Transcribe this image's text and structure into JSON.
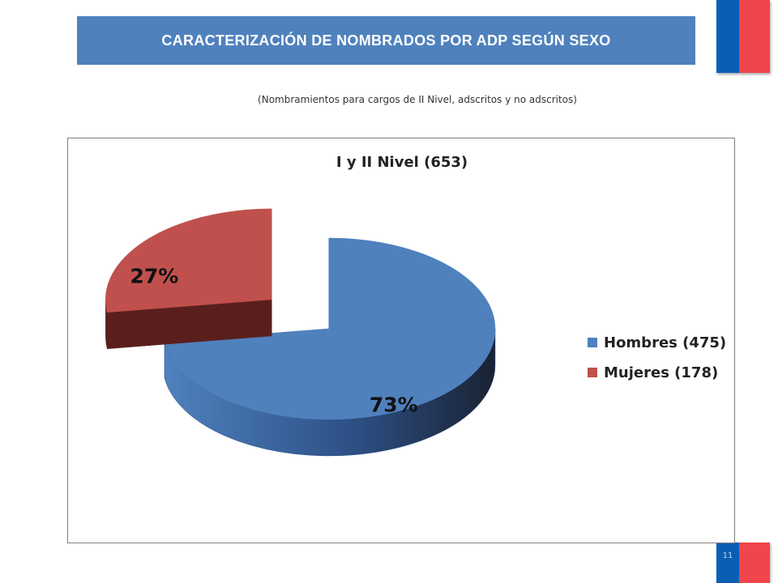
{
  "header": {
    "title": "CARACTERIZACIÓN  DE NOMBRADOS POR ADP SEGÚN SEXO",
    "subtitle": "(Nombramientos para cargos de II Nivel, adscritos y no adscritos)"
  },
  "slide_number": "11",
  "flag_colors": {
    "blue": "#0a5fb5",
    "red": "#f0454a"
  },
  "chart_data": {
    "type": "pie",
    "title": "I y II Nivel (653)",
    "labels": [
      "Hombres (475)",
      "Mujeres (178)"
    ],
    "values": [
      475,
      178
    ],
    "percent_labels": [
      "73%",
      "27%"
    ],
    "colors": [
      "#4f81bd",
      "#c0504d"
    ],
    "side_colors": [
      "#2e5288",
      "#5a1f1d"
    ],
    "legend_position": "right",
    "exploded": "Mujeres (178)",
    "three_d": true
  }
}
